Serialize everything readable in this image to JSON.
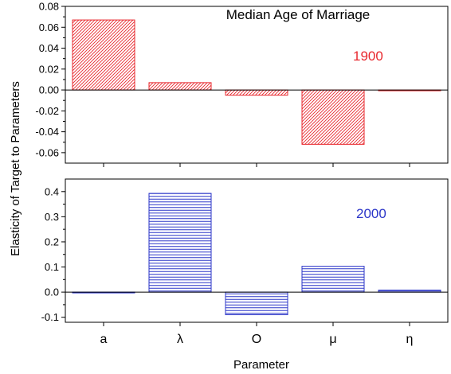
{
  "chart_data": {
    "type": "bar",
    "title": "Median Age of Marriage",
    "xlabel": "Parameter",
    "ylabel": "Elasticity of Target to Parameters",
    "categories": [
      "a",
      "λ",
      "O",
      "μ",
      "η"
    ],
    "panels": [
      {
        "label": "1900",
        "color": "#e8282e",
        "pattern": "diagonal-hatch",
        "ylim": [
          -0.07,
          0.08
        ],
        "yticks": [
          0.08,
          0.06,
          0.04,
          0.02,
          0.0,
          -0.02,
          -0.04,
          -0.06
        ],
        "ytick_labels": [
          "0.08",
          "0.06",
          "0.04",
          "0.02",
          "0.00",
          "-0.02",
          "-0.04",
          "-0.06"
        ],
        "values": [
          0.067,
          0.007,
          -0.005,
          -0.052,
          -0.0005
        ]
      },
      {
        "label": "2000",
        "color": "#2b35c8",
        "pattern": "horizontal-hatch",
        "ylim": [
          -0.12,
          0.45
        ],
        "yticks": [
          0.4,
          0.3,
          0.2,
          0.1,
          0.0,
          -0.1
        ],
        "ytick_labels": [
          "0.4",
          "0.3",
          "0.2",
          "0.1",
          "0.0",
          "-0.1"
        ],
        "values": [
          0.0,
          0.393,
          -0.09,
          0.103,
          0.008
        ]
      }
    ]
  }
}
